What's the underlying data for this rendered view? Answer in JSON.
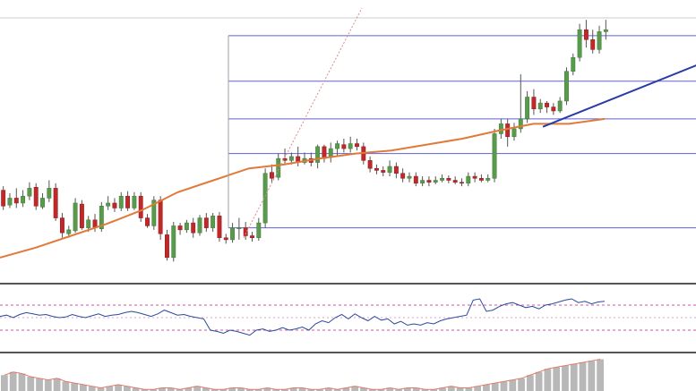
{
  "chart_data": [
    {
      "type": "candlestick",
      "panel": "price",
      "colors": {
        "up": "#5a9a4c",
        "down": "#c0282a",
        "wick": "#555555",
        "sma": "#e07a3a",
        "fib": "#3a3ac8",
        "trend": "#2a3aa8",
        "diag": "#e08a8a"
      },
      "candles": [
        [
          168,
          152,
          148,
          172
        ],
        [
          153,
          160,
          150,
          165
        ],
        [
          160,
          155,
          150,
          170
        ],
        [
          155,
          162,
          151,
          168
        ],
        [
          162,
          170,
          158,
          176
        ],
        [
          171,
          152,
          148,
          175
        ],
        [
          151,
          160,
          149,
          165
        ],
        [
          160,
          170,
          156,
          178
        ],
        [
          170,
          140,
          137,
          175
        ],
        [
          140,
          125,
          120,
          145
        ],
        [
          124,
          128,
          120,
          132
        ],
        [
          127,
          155,
          125,
          160
        ],
        [
          154,
          130,
          128,
          158
        ],
        [
          130,
          138,
          126,
          142
        ],
        [
          138,
          130,
          126,
          144
        ],
        [
          129,
          152,
          126,
          156
        ],
        [
          152,
          155,
          148,
          162
        ],
        [
          155,
          150,
          146,
          160
        ],
        [
          150,
          162,
          147,
          166
        ],
        [
          162,
          150,
          147,
          167
        ],
        [
          150,
          162,
          148,
          166
        ],
        [
          162,
          140,
          136,
          166
        ],
        [
          140,
          132,
          130,
          144
        ],
        [
          132,
          158,
          128,
          162
        ],
        [
          158,
          124,
          118,
          162
        ],
        [
          123,
          100,
          97,
          128
        ],
        [
          100,
          132,
          96,
          136
        ],
        [
          132,
          128,
          123,
          135
        ],
        [
          128,
          135,
          125,
          138
        ],
        [
          135,
          125,
          120,
          140
        ],
        [
          125,
          140,
          122,
          143
        ],
        [
          140,
          130,
          126,
          145
        ],
        [
          130,
          142,
          126,
          145
        ],
        [
          142,
          120,
          116,
          146
        ],
        [
          120,
          118,
          114,
          124
        ],
        [
          118,
          130,
          115,
          135
        ],
        [
          130,
          130,
          118,
          140
        ],
        [
          130,
          122,
          118,
          136
        ],
        [
          122,
          120,
          116,
          126
        ],
        [
          120,
          135,
          117,
          140
        ],
        [
          135,
          185,
          130,
          190
        ],
        [
          186,
          180,
          176,
          194
        ],
        [
          181,
          200,
          178,
          205
        ],
        [
          200,
          198,
          194,
          210
        ],
        [
          198,
          202,
          194,
          206
        ],
        [
          202,
          196,
          192,
          212
        ],
        [
          196,
          200,
          194,
          206
        ],
        [
          200,
          196,
          192,
          206
        ],
        [
          196,
          212,
          190,
          214
        ],
        [
          212,
          200,
          196,
          214
        ],
        [
          201,
          210,
          196,
          216
        ],
        [
          210,
          215,
          202,
          218
        ],
        [
          214,
          210,
          206,
          220
        ],
        [
          210,
          215,
          206,
          222
        ],
        [
          215,
          212,
          208,
          220
        ],
        [
          212,
          198,
          194,
          216
        ],
        [
          198,
          190,
          186,
          202
        ],
        [
          190,
          188,
          184,
          194
        ],
        [
          188,
          186,
          182,
          192
        ],
        [
          186,
          192,
          182,
          198
        ],
        [
          192,
          185,
          180,
          196
        ],
        [
          185,
          180,
          176,
          190
        ],
        [
          180,
          182,
          176,
          186
        ],
        [
          182,
          175,
          172,
          186
        ],
        [
          175,
          178,
          172,
          182
        ],
        [
          178,
          176,
          172,
          182
        ],
        [
          176,
          178,
          174,
          182
        ],
        [
          178,
          180,
          176,
          184
        ],
        [
          180,
          178,
          175,
          183
        ],
        [
          178,
          176,
          174,
          182
        ],
        [
          176,
          175,
          172,
          180
        ],
        [
          175,
          182,
          172,
          186
        ],
        [
          182,
          180,
          176,
          186
        ],
        [
          180,
          178,
          176,
          184
        ],
        [
          178,
          180,
          176,
          184
        ],
        [
          180,
          225,
          176,
          230
        ],
        [
          225,
          235,
          220,
          240
        ],
        [
          235,
          222,
          212,
          240
        ],
        [
          222,
          230,
          218,
          236
        ],
        [
          230,
          240,
          226,
          285
        ],
        [
          240,
          262,
          236,
          268
        ],
        [
          262,
          250,
          244,
          270
        ],
        [
          250,
          256,
          246,
          260
        ],
        [
          256,
          252,
          246,
          258
        ],
        [
          252,
          248,
          244,
          256
        ],
        [
          248,
          258,
          246,
          262
        ],
        [
          258,
          288,
          254,
          292
        ],
        [
          288,
          302,
          284,
          306
        ],
        [
          302,
          330,
          298,
          336
        ],
        [
          330,
          320,
          312,
          340
        ],
        [
          320,
          310,
          306,
          330
        ],
        [
          310,
          328,
          306,
          334
        ],
        [
          328,
          330,
          320,
          340
        ]
      ],
      "sma": [
        100,
        110,
        122,
        134,
        148,
        166,
        178,
        190,
        194,
        200,
        205,
        208,
        214,
        220,
        228,
        235,
        235,
        240
      ],
      "fib_levels": [
        324,
        278,
        240,
        205,
        130
      ],
      "trendline": {
        "from": [
          78,
          232
        ],
        "to": [
          105,
          308
        ]
      },
      "diag_line": {
        "from": [
          35,
          120
        ],
        "to": [
          52,
          352
        ]
      }
    },
    {
      "type": "line",
      "panel": "oscillator",
      "levels": [
        70,
        30
      ],
      "values": [
        52,
        54,
        50,
        55,
        58,
        56,
        54,
        55,
        52,
        50,
        51,
        55,
        52,
        50,
        53,
        56,
        52,
        54,
        55,
        58,
        60,
        58,
        55,
        52,
        56,
        62,
        58,
        54,
        55,
        52,
        50,
        48,
        30,
        28,
        25,
        30,
        28,
        25,
        22,
        30,
        32,
        28,
        30,
        34,
        30,
        32,
        35,
        30,
        40,
        45,
        42,
        50,
        55,
        48,
        56,
        50,
        45,
        52,
        46,
        48,
        40,
        44,
        38,
        40,
        38,
        42,
        40,
        45,
        48,
        50,
        52,
        54,
        78,
        80,
        60,
        62,
        68,
        72,
        74,
        70,
        66,
        68,
        64,
        70,
        72,
        75,
        78,
        80,
        74,
        76,
        72,
        75,
        76
      ]
    },
    {
      "type": "bar",
      "panel": "histogram",
      "values": [
        10,
        12,
        11,
        9,
        8,
        7,
        8,
        6,
        5,
        4,
        3,
        2,
        3,
        4,
        3,
        2,
        1,
        1,
        2,
        2,
        1,
        2,
        3,
        2,
        1,
        1,
        2,
        2,
        1,
        1,
        2,
        1,
        1,
        2,
        2,
        1,
        1,
        2,
        1,
        2,
        3,
        2,
        1,
        1,
        2,
        1,
        2,
        2,
        1,
        1,
        2,
        3,
        2,
        2,
        3,
        4,
        5,
        6,
        7,
        8,
        10,
        12,
        14,
        15,
        16,
        17,
        18,
        19,
        20
      ]
    }
  ]
}
